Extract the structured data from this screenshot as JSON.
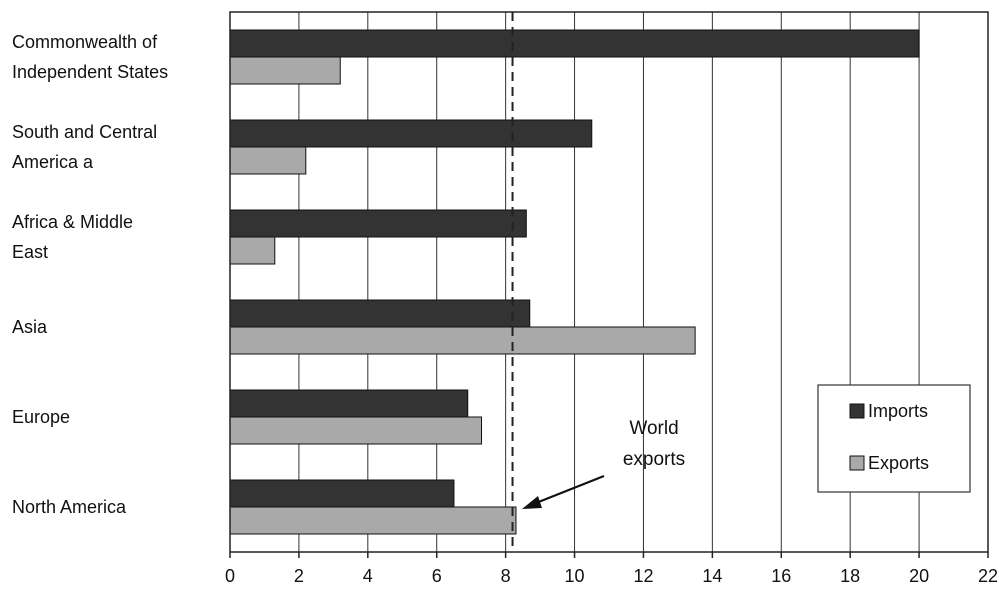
{
  "chart_data": {
    "type": "bar",
    "orientation": "horizontal",
    "categories": [
      [
        "Commonwealth of",
        "Independent States"
      ],
      [
        "South and Central",
        "America  a"
      ],
      [
        "Africa & Middle",
        "East"
      ],
      [
        "Asia"
      ],
      [
        "Europe"
      ],
      [
        "North America"
      ]
    ],
    "series": [
      {
        "name": "Imports",
        "values": [
          20.0,
          10.5,
          8.6,
          8.7,
          6.9,
          6.5
        ],
        "color": "#333333"
      },
      {
        "name": "Exports",
        "values": [
          3.2,
          2.2,
          1.3,
          13.5,
          7.3,
          8.3
        ],
        "color": "#a9a9a9"
      }
    ],
    "xlim": [
      0,
      22
    ],
    "xticks": [
      "0",
      "2",
      "4",
      "6",
      "8",
      "10",
      "12",
      "14",
      "16",
      "18",
      "20",
      "22"
    ],
    "grid": "vertical",
    "legend": {
      "position": "bottom-right",
      "entries": [
        "Imports",
        "Exports"
      ]
    },
    "reference_line": {
      "value": 8.2,
      "style": "dashed"
    },
    "annotation": {
      "lines": [
        "World",
        "exports"
      ],
      "arrow_to": 8.2
    }
  }
}
